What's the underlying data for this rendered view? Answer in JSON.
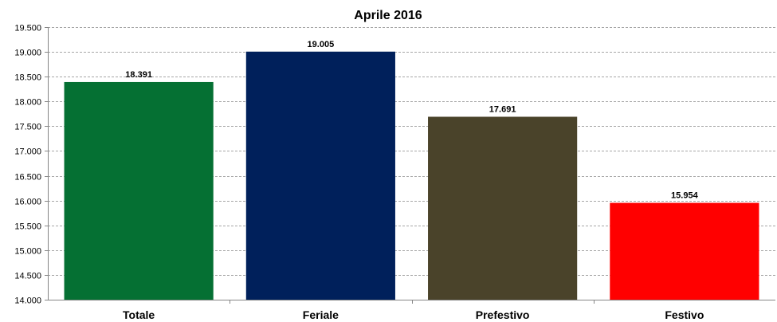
{
  "chart_data": {
    "type": "bar",
    "title": "Aprile 2016",
    "xlabel": "",
    "ylabel": "",
    "categories": [
      "Totale",
      "Feriale",
      "Prefestivo",
      "Festivo"
    ],
    "values": [
      18391,
      19005,
      17691,
      15954
    ],
    "value_labels": [
      "18.391",
      "19.005",
      "17.691",
      "15.954"
    ],
    "bar_colors": [
      "#057033",
      "#00205b",
      "#4a432a",
      "#ff0000"
    ],
    "ylim": [
      14000,
      19500
    ],
    "yticks": [
      14000,
      14500,
      15000,
      15500,
      16000,
      16500,
      17000,
      17500,
      18000,
      18500,
      19000,
      19500
    ],
    "ytick_labels": [
      "14.000",
      "14.500",
      "15.000",
      "15.500",
      "16.000",
      "16.500",
      "17.000",
      "17.500",
      "18.000",
      "18.500",
      "19.000",
      "19.500"
    ],
    "grid": true,
    "legend": "none"
  }
}
